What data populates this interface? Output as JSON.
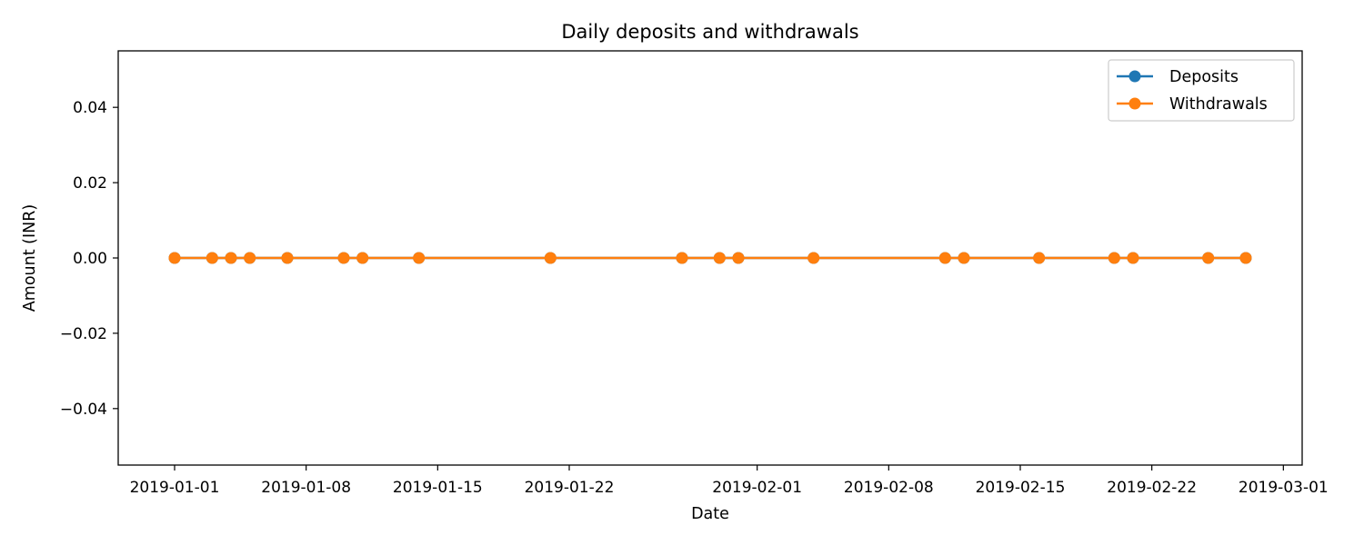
{
  "chart_data": {
    "type": "line",
    "title": "Daily deposits and withdrawals",
    "xlabel": "Date",
    "ylabel": "Amount (INR)",
    "x_ticks": [
      "2019-01-01",
      "2019-01-08",
      "2019-01-15",
      "2019-01-22",
      "2019-02-01",
      "2019-02-08",
      "2019-02-15",
      "2019-02-22",
      "2019-03-01"
    ],
    "y_ticks": [
      "0.04",
      "0.02",
      "0.00",
      "−0.02",
      "−0.04"
    ],
    "y_tick_values": [
      0.04,
      0.02,
      0.0,
      -0.02,
      -0.04
    ],
    "ylim": [
      -0.055,
      0.055
    ],
    "xlim": [
      "2018-12-29",
      "2019-03-02"
    ],
    "grid": false,
    "legend_position": "top-right",
    "x": [
      "2019-01-01",
      "2019-01-03",
      "2019-01-04",
      "2019-01-05",
      "2019-01-07",
      "2019-01-10",
      "2019-01-11",
      "2019-01-14",
      "2019-01-21",
      "2019-01-28",
      "2019-01-30",
      "2019-01-31",
      "2019-02-04",
      "2019-02-11",
      "2019-02-12",
      "2019-02-16",
      "2019-02-20",
      "2019-02-21",
      "2019-02-25",
      "2019-02-27"
    ],
    "series": [
      {
        "name": "Deposits",
        "color": "#1f77b4",
        "marker": "circle",
        "values": [
          0,
          0,
          0,
          0,
          0,
          0,
          0,
          0,
          0,
          0,
          0,
          0,
          0,
          0,
          0,
          0,
          0,
          0,
          0,
          0
        ]
      },
      {
        "name": "Withdrawals",
        "color": "#ff7f0e",
        "marker": "circle",
        "values": [
          0,
          0,
          0,
          0,
          0,
          0,
          0,
          0,
          0,
          0,
          0,
          0,
          0,
          0,
          0,
          0,
          0,
          0,
          0,
          0
        ]
      }
    ]
  }
}
